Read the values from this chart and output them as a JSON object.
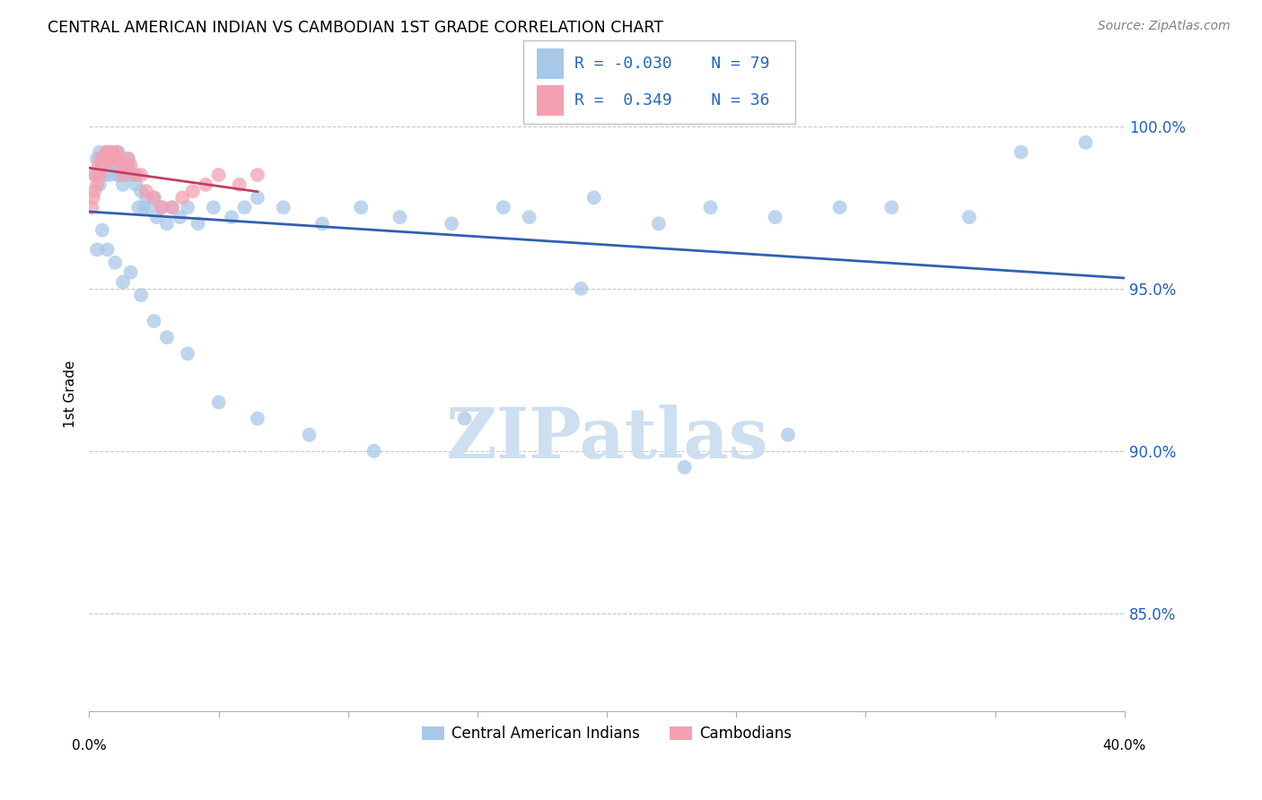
{
  "title": "CENTRAL AMERICAN INDIAN VS CAMBODIAN 1ST GRADE CORRELATION CHART",
  "source": "Source: ZipAtlas.com",
  "ylabel": "1st Grade",
  "xlim": [
    0.0,
    40.0
  ],
  "ylim": [
    82.0,
    101.5
  ],
  "yticks": [
    85.0,
    90.0,
    95.0,
    100.0
  ],
  "ytick_labels": [
    "85.0%",
    "90.0%",
    "95.0%",
    "100.0%"
  ],
  "blue_R": "-0.030",
  "blue_N": "79",
  "pink_R": "0.349",
  "pink_N": "36",
  "blue_color": "#a8c8e8",
  "pink_color": "#f4a0b0",
  "blue_line_color": "#3060b0",
  "pink_line_color": "#c04060",
  "legend_blue_label": "Central American Indians",
  "legend_pink_label": "Cambodians",
  "watermark": "ZIPatlas",
  "watermark_color": "#cddff0",
  "blue_x": [
    0.2,
    0.3,
    0.4,
    0.4,
    0.5,
    0.5,
    0.6,
    0.6,
    0.7,
    0.7,
    0.8,
    0.8,
    0.9,
    0.9,
    1.0,
    1.0,
    1.1,
    1.1,
    1.2,
    1.2,
    1.3,
    1.3,
    1.4,
    1.5,
    1.5,
    1.6,
    1.7,
    1.8,
    1.9,
    2.0,
    2.1,
    2.2,
    2.3,
    2.5,
    2.6,
    2.8,
    3.0,
    3.2,
    3.5,
    3.8,
    4.2,
    4.8,
    5.5,
    6.0,
    6.5,
    7.5,
    9.0,
    10.5,
    12.0,
    14.0,
    16.0,
    17.0,
    19.5,
    22.0,
    24.0,
    26.5,
    29.0,
    31.0,
    34.0,
    36.0,
    38.5,
    0.3,
    0.5,
    0.7,
    1.0,
    1.3,
    1.6,
    2.0,
    2.5,
    3.0,
    3.8,
    5.0,
    6.5,
    8.5,
    11.0,
    14.5,
    19.0,
    23.0,
    27.0
  ],
  "blue_y": [
    98.5,
    99.0,
    98.2,
    99.2,
    98.8,
    99.0,
    99.0,
    98.5,
    98.8,
    99.2,
    99.0,
    98.5,
    98.8,
    99.0,
    98.8,
    99.0,
    98.5,
    99.2,
    98.5,
    99.0,
    98.2,
    98.8,
    98.5,
    98.8,
    99.0,
    98.5,
    98.5,
    98.2,
    97.5,
    98.0,
    97.5,
    97.8,
    97.5,
    97.8,
    97.2,
    97.5,
    97.0,
    97.5,
    97.2,
    97.5,
    97.0,
    97.5,
    97.2,
    97.5,
    97.8,
    97.5,
    97.0,
    97.5,
    97.2,
    97.0,
    97.5,
    97.2,
    97.8,
    97.0,
    97.5,
    97.2,
    97.5,
    97.5,
    97.2,
    99.2,
    99.5,
    96.2,
    96.8,
    96.2,
    95.8,
    95.2,
    95.5,
    94.8,
    94.0,
    93.5,
    93.0,
    91.5,
    91.0,
    90.5,
    90.0,
    91.0,
    95.0,
    89.5,
    90.5
  ],
  "pink_x": [
    0.1,
    0.15,
    0.2,
    0.25,
    0.3,
    0.35,
    0.4,
    0.45,
    0.5,
    0.55,
    0.6,
    0.65,
    0.7,
    0.75,
    0.8,
    0.85,
    0.9,
    1.0,
    1.1,
    1.2,
    1.3,
    1.4,
    1.5,
    1.6,
    1.8,
    2.0,
    2.2,
    2.5,
    2.8,
    3.2,
    3.6,
    4.0,
    4.5,
    5.0,
    5.8,
    6.5
  ],
  "pink_y": [
    97.5,
    97.8,
    98.0,
    98.5,
    98.2,
    98.8,
    98.5,
    99.0,
    98.8,
    99.0,
    98.8,
    99.2,
    99.2,
    99.0,
    99.2,
    99.0,
    99.2,
    99.0,
    99.2,
    98.8,
    98.5,
    98.8,
    99.0,
    98.8,
    98.5,
    98.5,
    98.0,
    97.8,
    97.5,
    97.5,
    97.8,
    98.0,
    98.2,
    98.5,
    98.2,
    98.5
  ]
}
